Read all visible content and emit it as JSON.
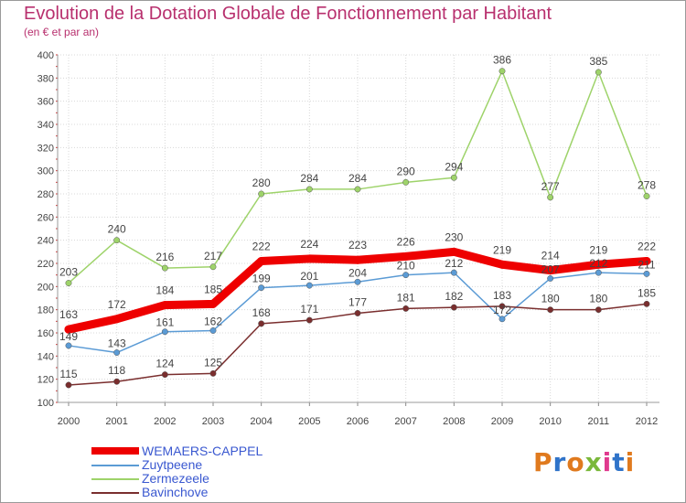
{
  "header": {
    "title": "Evolution de la Dotation Globale de Fonctionnement par Habitant",
    "subtitle": "(en € et par an)"
  },
  "logo": {
    "text": "Proxiti",
    "colors": [
      "#e07a1e",
      "#2f73c9",
      "#e07a1e",
      "#7ab83a",
      "#e03a8e",
      "#2f73c9",
      "#e07a1e"
    ]
  },
  "chart_data": {
    "type": "line",
    "title": "Evolution de la Dotation Globale de Fonctionnement par Habitant",
    "subtitle": "(en € et par an)",
    "xlabel": "",
    "ylabel": "",
    "x": [
      "2000",
      "2001",
      "2002",
      "2003",
      "2004",
      "2005",
      "2006",
      "2007",
      "2008",
      "2009",
      "2010",
      "2011",
      "2012"
    ],
    "ylim": [
      100,
      400
    ],
    "yticks": [
      "100",
      "120",
      "140",
      "160",
      "180",
      "200",
      "220",
      "240",
      "260",
      "280",
      "300",
      "320",
      "340",
      "360",
      "380",
      "400"
    ],
    "grid": true,
    "legend_position": "bottom-left",
    "series": [
      {
        "name": "WEMAERS-CAPPEL",
        "color": "#ee0000",
        "emphasis": true,
        "values": [
          163,
          172,
          184,
          185,
          222,
          224,
          223,
          226,
          230,
          219,
          214,
          219,
          222
        ],
        "labels": [
          "163",
          "172",
          "184",
          "185",
          "222",
          "224",
          "223",
          "226",
          "230",
          "219",
          "214",
          "219",
          "222"
        ]
      },
      {
        "name": "Zuytpeene",
        "color": "#5b9bd5",
        "emphasis": false,
        "values": [
          149,
          143,
          161,
          162,
          199,
          201,
          204,
          210,
          212,
          172,
          207,
          212,
          211
        ],
        "labels": [
          "149",
          "143",
          "161",
          "162",
          "199",
          "201",
          "204",
          "210",
          "212",
          "172",
          "207",
          "212",
          "211"
        ]
      },
      {
        "name": "Zermezeele",
        "color": "#9ed36a",
        "emphasis": false,
        "values": [
          203,
          240,
          216,
          217,
          280,
          284,
          284,
          290,
          294,
          386,
          277,
          385,
          278
        ],
        "labels": [
          "203",
          "240",
          "216",
          "217",
          "280",
          "284",
          "284",
          "290",
          "294",
          "386",
          "277",
          "385",
          "278"
        ]
      },
      {
        "name": "Bavinchove",
        "color": "#7a2e2e",
        "emphasis": false,
        "values": [
          115,
          118,
          124,
          125,
          168,
          171,
          177,
          181,
          182,
          183,
          180,
          180,
          185
        ],
        "labels": [
          "115",
          "118",
          "124",
          "125",
          "168",
          "171",
          "177",
          "181",
          "182",
          "183",
          "180",
          "180",
          "185"
        ]
      }
    ]
  }
}
